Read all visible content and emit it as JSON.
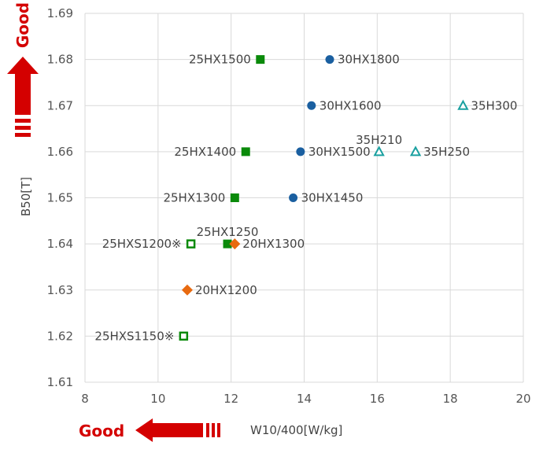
{
  "chart_data": {
    "type": "scatter",
    "xlabel": "W10/400[W/kg]",
    "ylabel": "B50[T]",
    "xlim": [
      8,
      20
    ],
    "ylim": [
      1.61,
      1.69
    ],
    "x_ticks": [
      "8",
      "10",
      "12",
      "14",
      "16",
      "18",
      "20"
    ],
    "y_ticks": [
      "1.61",
      "1.62",
      "1.63",
      "1.64",
      "1.65",
      "1.66",
      "1.67",
      "1.68",
      "1.69"
    ],
    "grid": true,
    "good_x_label": "Good",
    "good_y_label": "Good",
    "colors": {
      "green": "#0a8a0a",
      "blue": "#1a5fa0",
      "orange": "#e86a10",
      "teal": "#1aa0a0",
      "good_red": "#d40000"
    },
    "points": [
      {
        "label": "25HX1500",
        "x": 12.8,
        "y": 1.68,
        "marker": "square",
        "color": "green",
        "label_side": "left"
      },
      {
        "label": "25HX1400",
        "x": 12.4,
        "y": 1.66,
        "marker": "square",
        "color": "green",
        "label_side": "left"
      },
      {
        "label": "25HX1300",
        "x": 12.1,
        "y": 1.65,
        "marker": "square",
        "color": "green",
        "label_side": "left"
      },
      {
        "label": "25HX1250",
        "x": 11.9,
        "y": 1.64,
        "marker": "square",
        "color": "green",
        "label_side": "above"
      },
      {
        "label": "25HXS1200※",
        "x": 10.9,
        "y": 1.64,
        "marker": "square-open",
        "color": "green",
        "label_side": "left"
      },
      {
        "label": "25HXS1150※",
        "x": 10.7,
        "y": 1.62,
        "marker": "square-open",
        "color": "green",
        "label_side": "left"
      },
      {
        "label": "30HX1800",
        "x": 14.7,
        "y": 1.68,
        "marker": "circle",
        "color": "blue",
        "label_side": "right"
      },
      {
        "label": "30HX1600",
        "x": 14.2,
        "y": 1.67,
        "marker": "circle",
        "color": "blue",
        "label_side": "right"
      },
      {
        "label": "30HX1500",
        "x": 13.9,
        "y": 1.66,
        "marker": "circle",
        "color": "blue",
        "label_side": "right"
      },
      {
        "label": "30HX1450",
        "x": 13.7,
        "y": 1.65,
        "marker": "circle",
        "color": "blue",
        "label_side": "right"
      },
      {
        "label": "20HX1300",
        "x": 12.1,
        "y": 1.64,
        "marker": "diamond",
        "color": "orange",
        "label_side": "right"
      },
      {
        "label": "20HX1200",
        "x": 10.8,
        "y": 1.63,
        "marker": "diamond",
        "color": "orange",
        "label_side": "right"
      },
      {
        "label": "35H300",
        "x": 18.35,
        "y": 1.67,
        "marker": "triangle-open",
        "color": "teal",
        "label_side": "right"
      },
      {
        "label": "35H210",
        "x": 16.05,
        "y": 1.66,
        "marker": "triangle-open",
        "color": "teal",
        "label_side": "above"
      },
      {
        "label": "35H250",
        "x": 17.05,
        "y": 1.66,
        "marker": "triangle-open",
        "color": "teal",
        "label_side": "right"
      }
    ]
  }
}
